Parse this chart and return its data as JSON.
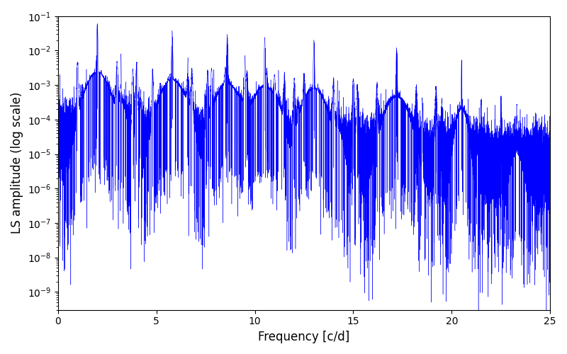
{
  "title": "",
  "xlabel": "Frequency [c/d]",
  "ylabel": "LS amplitude (log scale)",
  "xlim": [
    0,
    25
  ],
  "ylim": [
    3e-10,
    0.1
  ],
  "line_color": "blue",
  "background_color": "#ffffff",
  "freq_max": 25.0,
  "n_points": 50000,
  "seed": 42,
  "base_noise_level": 2e-05,
  "peak_frequencies": [
    2.0,
    3.2,
    5.8,
    6.6,
    8.6,
    9.5,
    10.5,
    11.2,
    13.0,
    14.2,
    17.2,
    20.5,
    23.3
  ],
  "peak_amplitudes": [
    0.045,
    0.006,
    0.028,
    0.003,
    0.022,
    0.004,
    0.018,
    0.002,
    0.015,
    0.001,
    0.009,
    0.004,
    0.0002
  ],
  "peak_widths": [
    0.02,
    0.01,
    0.02,
    0.01,
    0.02,
    0.01,
    0.02,
    0.01,
    0.02,
    0.01,
    0.02,
    0.01,
    0.01
  ]
}
